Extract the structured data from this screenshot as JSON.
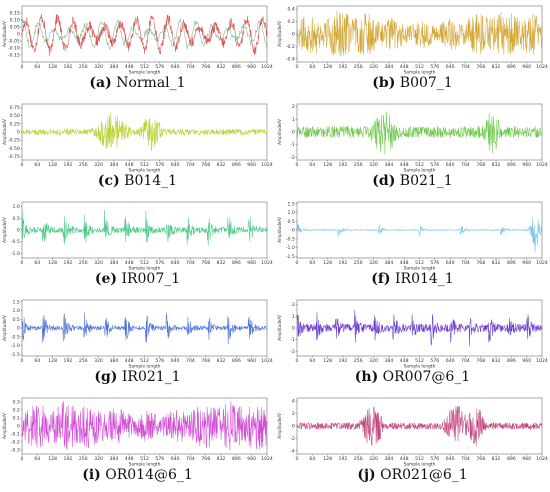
{
  "chart_data": [
    {
      "type": "line",
      "panel_letter": "(a)",
      "panel_name": "Normal_1",
      "color": "#d9534f",
      "color2": "#2e8b57",
      "style": "periodic",
      "x_ticks": [
        "0",
        "64",
        "128",
        "192",
        "256",
        "320",
        "384",
        "448",
        "512",
        "576",
        "640",
        "704",
        "768",
        "832",
        "896",
        "960",
        "1024"
      ],
      "y_ticks": [
        "0.15",
        "0.10",
        "0.05",
        "0",
        "-0.05",
        "-0.10",
        "-0.15"
      ],
      "y_range": [
        -0.2,
        0.2
      ],
      "amp": 0.15,
      "xlabel": "Sample length",
      "ylabel": "Amplitude/V",
      "x_range": [
        0,
        1024
      ]
    },
    {
      "type": "line",
      "panel_letter": "(b)",
      "panel_name": "B007_1",
      "color": "#d4a838",
      "style": "noise",
      "x_ticks": [
        "0",
        "64",
        "128",
        "192",
        "256",
        "320",
        "384",
        "448",
        "512",
        "576",
        "640",
        "704",
        "768",
        "832",
        "896",
        "960",
        "1024"
      ],
      "y_ticks": [
        "0.4",
        "0.2",
        "0",
        "-0.2",
        "-0.4"
      ],
      "y_range": [
        -0.45,
        0.45
      ],
      "amp": 0.3,
      "xlabel": "Sample length",
      "ylabel": "Amplitude/V",
      "x_range": [
        0,
        1024
      ]
    },
    {
      "type": "line",
      "panel_letter": "(c)",
      "panel_name": "B014_1",
      "color": "#bcd23a",
      "style": "burst",
      "x_ticks": [
        "0",
        "64",
        "128",
        "192",
        "256",
        "320",
        "384",
        "448",
        "512",
        "576",
        "640",
        "704",
        "768",
        "832",
        "896",
        "960",
        "1024"
      ],
      "y_ticks": [
        "0.75",
        "0.50",
        "0.25",
        "0",
        "-0.25",
        "-0.50",
        "-0.75"
      ],
      "y_range": [
        -0.85,
        0.85
      ],
      "amp": 0.6,
      "bursts": [
        [
          330,
          420
        ],
        [
          520,
          560
        ]
      ],
      "base": 0.15,
      "xlabel": "Sample length",
      "ylabel": "Amplitude/V",
      "x_range": [
        0,
        1024
      ]
    },
    {
      "type": "line",
      "panel_letter": "(d)",
      "panel_name": "B021_1",
      "color": "#6ec94a",
      "style": "burst",
      "x_ticks": [
        "0",
        "64",
        "128",
        "192",
        "256",
        "320",
        "384",
        "448",
        "512",
        "576",
        "640",
        "704",
        "768",
        "832",
        "896",
        "960",
        "1024"
      ],
      "y_ticks": [
        "2",
        "1",
        "0",
        "-1",
        "-2"
      ],
      "y_range": [
        -2.2,
        2.2
      ],
      "amp": 1.8,
      "bursts": [
        [
          330,
          400
        ],
        [
          800,
          830
        ]
      ],
      "base": 0.25,
      "xlabel": "Sample length",
      "ylabel": "Amplitude/V",
      "x_range": [
        0,
        1024
      ]
    },
    {
      "type": "line",
      "panel_letter": "(e)",
      "panel_name": "IR007_1",
      "color": "#4fc98a",
      "style": "impulse",
      "x_ticks": [
        "0",
        "64",
        "128",
        "192",
        "256",
        "320",
        "384",
        "448",
        "512",
        "576",
        "640",
        "704",
        "768",
        "832",
        "896",
        "960",
        "1024"
      ],
      "y_ticks": [
        "1.0",
        "0.5",
        "0",
        "-0.5",
        "-1.0"
      ],
      "y_range": [
        -1.2,
        1.2
      ],
      "amp": 1.0,
      "period": 86,
      "base": 0.12,
      "xlabel": "Sample length",
      "ylabel": "Amplitude/V",
      "x_range": [
        0,
        1024
      ]
    },
    {
      "type": "line",
      "panel_letter": "(f)",
      "panel_name": "IR014_1",
      "color": "#7ec3e4",
      "style": "impulse",
      "x_ticks": [
        "0",
        "64",
        "128",
        "192",
        "256",
        "320",
        "384",
        "448",
        "512",
        "576",
        "640",
        "704",
        "768",
        "832",
        "896",
        "960",
        "1024"
      ],
      "y_ticks": [
        "1.5",
        "1.0",
        "0.5",
        "0",
        "-0.5",
        "-1.0",
        "-1.5"
      ],
      "y_range": [
        -1.6,
        1.6
      ],
      "amp": 0.55,
      "period": 170,
      "base": 0.06,
      "big": [
        [
          980,
          1010
        ]
      ],
      "xlabel": "Sample length",
      "ylabel": "Amplitude/V",
      "x_range": [
        0,
        1024
      ]
    },
    {
      "type": "line",
      "panel_letter": "(g)",
      "panel_name": "IR021_1",
      "color": "#4f73d8",
      "style": "impulse",
      "x_ticks": [
        "0",
        "64",
        "128",
        "192",
        "256",
        "320",
        "384",
        "448",
        "512",
        "576",
        "640",
        "704",
        "768",
        "832",
        "896",
        "960",
        "1024"
      ],
      "y_ticks": [
        "1.5",
        "1.0",
        "0.5",
        "0",
        "-0.5",
        "-1.0",
        "-1.5"
      ],
      "y_range": [
        -1.6,
        1.6
      ],
      "amp": 1.2,
      "period": 86,
      "base": 0.1,
      "xlabel": "Sample length",
      "ylabel": "Amplitude/V",
      "x_range": [
        0,
        1024
      ]
    },
    {
      "type": "line",
      "panel_letter": "(h)",
      "panel_name": "OR007@6_1",
      "color": "#6a3fd1",
      "style": "impulse",
      "x_ticks": [
        "0",
        "64",
        "128",
        "192",
        "256",
        "320",
        "384",
        "448",
        "512",
        "576",
        "640",
        "704",
        "768",
        "832",
        "896",
        "960",
        "1024"
      ],
      "y_ticks": [
        "2",
        "1",
        "0",
        "-1",
        "-2"
      ],
      "y_range": [
        -2.4,
        2.4
      ],
      "amp": 1.6,
      "period": 80,
      "base": 0.2,
      "xlabel": "Sample length",
      "ylabel": "Amplitude/V",
      "x_range": [
        0,
        1024
      ]
    },
    {
      "type": "line",
      "panel_letter": "(i)",
      "panel_name": "OR014@6_1",
      "color": "#d24fd6",
      "style": "noise",
      "x_ticks": [
        "0",
        "64",
        "128",
        "192",
        "256",
        "320",
        "384",
        "448",
        "512",
        "576",
        "640",
        "704",
        "768",
        "832",
        "896",
        "960",
        "1024"
      ],
      "y_ticks": [
        "0.3",
        "0.2",
        "0.1",
        "0",
        "-0.1",
        "-0.2",
        "-0.3"
      ],
      "y_range": [
        -0.35,
        0.35
      ],
      "amp": 0.25,
      "xlabel": "Sample length",
      "ylabel": "Amplitude/V",
      "x_range": [
        0,
        1024
      ]
    },
    {
      "type": "line",
      "panel_letter": "(j)",
      "panel_name": "OR021@6_1",
      "color": "#c2407c",
      "style": "burst",
      "x_ticks": [
        "0",
        "64",
        "128",
        "192",
        "256",
        "320",
        "384",
        "448",
        "512",
        "576",
        "640",
        "704",
        "768",
        "832",
        "896",
        "960",
        "1024"
      ],
      "y_ticks": [
        "4",
        "2",
        "0",
        "-2",
        "-4"
      ],
      "y_range": [
        -4.5,
        4.5
      ],
      "amp": 3.6,
      "bursts": [
        [
          290,
          340
        ],
        [
          640,
          690
        ],
        [
          730,
          760
        ]
      ],
      "base": 0.15,
      "xlabel": "Sample length",
      "ylabel": "Amplitude/V",
      "x_range": [
        0,
        1024
      ]
    }
  ]
}
